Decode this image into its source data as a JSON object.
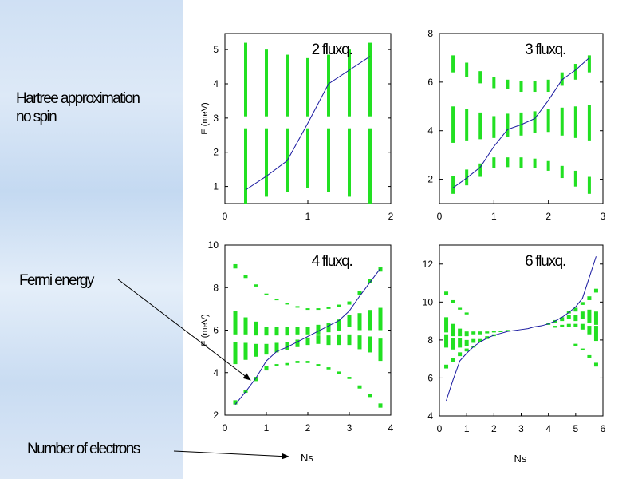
{
  "notes": {
    "hartree_line1": "Hartree approximation",
    "hartree_line2": "no spin",
    "fermi": "Fermi energy",
    "electrons": "Number of electrons"
  },
  "colors": {
    "bars": "#22e022",
    "line": "#1a1aa0",
    "background_gradient": "#cfe0f4"
  },
  "chart_data": [
    {
      "type": "line",
      "title": "2 fluxq.",
      "ylabel": "E (meV)",
      "xlabel": "",
      "xlim": [
        0,
        2
      ],
      "ylim": [
        0.5,
        5.47
      ],
      "xticks": [
        "0",
        "1",
        "2"
      ],
      "xtick_values": [
        0,
        1,
        2
      ],
      "yticks": [
        "1",
        "2",
        "3",
        "4",
        "5"
      ],
      "ytick_values": [
        1,
        2,
        3,
        4,
        5
      ],
      "line": {
        "x": [
          0.25,
          0.5,
          0.75,
          1,
          1.25,
          1.5,
          1.75
        ],
        "y": [
          0.9,
          1.3,
          1.75,
          2.85,
          4.0,
          4.4,
          4.8
        ]
      },
      "bars": [
        [
          0.25,
          0.5,
          2.7
        ],
        [
          0.25,
          3.05,
          5.2
        ],
        [
          0.5,
          0.7,
          2.7
        ],
        [
          0.5,
          3.05,
          5.0
        ],
        [
          0.75,
          0.85,
          2.7
        ],
        [
          0.75,
          3.05,
          4.85
        ],
        [
          1,
          0.95,
          2.7
        ],
        [
          1,
          3.05,
          4.75
        ],
        [
          1.25,
          0.85,
          2.7
        ],
        [
          1.25,
          3.05,
          4.85
        ],
        [
          1.5,
          0.7,
          2.7
        ],
        [
          1.5,
          3.05,
          5.0
        ],
        [
          1.75,
          0.5,
          2.7
        ],
        [
          1.75,
          3.05,
          5.2
        ]
      ],
      "bar_width": 4
    },
    {
      "type": "line",
      "title": "3 fluxq.",
      "ylabel": "",
      "xlabel": "",
      "xlim": [
        0,
        3
      ],
      "ylim": [
        1,
        8
      ],
      "xticks": [
        "0",
        "1",
        "2",
        "3"
      ],
      "xtick_values": [
        0,
        1,
        2,
        3
      ],
      "yticks": [
        "2",
        "4",
        "6",
        "8"
      ],
      "ytick_values": [
        2,
        4,
        6,
        8
      ],
      "line": {
        "x": [
          0.25,
          0.5,
          0.75,
          1,
          1.25,
          1.5,
          1.75,
          2,
          2.25,
          2.5,
          2.75
        ],
        "y": [
          1.65,
          2.05,
          2.5,
          3.35,
          4.05,
          4.25,
          4.5,
          5.25,
          6.1,
          6.5,
          7.0
        ]
      },
      "bars": [
        [
          0.25,
          6.4,
          7.1
        ],
        [
          0.5,
          6.2,
          6.8
        ],
        [
          0.75,
          5.95,
          6.45
        ],
        [
          1,
          5.75,
          6.2
        ],
        [
          1.25,
          5.7,
          6.1
        ],
        [
          1.5,
          5.6,
          6.05
        ],
        [
          1.75,
          5.6,
          6.05
        ],
        [
          2,
          5.6,
          6.1
        ],
        [
          2.25,
          5.85,
          6.4
        ],
        [
          2.5,
          6.1,
          6.75
        ],
        [
          2.75,
          6.4,
          7.1
        ],
        [
          0.25,
          3.5,
          5.0
        ],
        [
          0.5,
          3.6,
          4.9
        ],
        [
          0.75,
          3.65,
          4.75
        ],
        [
          1,
          3.7,
          4.6
        ],
        [
          1.25,
          3.75,
          4.7
        ],
        [
          1.5,
          3.8,
          4.75
        ],
        [
          1.75,
          3.9,
          4.8
        ],
        [
          2,
          3.95,
          4.9
        ],
        [
          2.25,
          3.8,
          4.95
        ],
        [
          2.5,
          3.7,
          5.0
        ],
        [
          2.75,
          3.6,
          5.05
        ],
        [
          0.25,
          1.4,
          2.15
        ],
        [
          0.5,
          1.75,
          2.4
        ],
        [
          0.75,
          2.1,
          2.65
        ],
        [
          1,
          2.45,
          2.9
        ],
        [
          1.25,
          2.5,
          2.9
        ],
        [
          1.5,
          2.45,
          2.9
        ],
        [
          1.75,
          2.45,
          2.85
        ],
        [
          2,
          2.35,
          2.75
        ],
        [
          2.25,
          2.05,
          2.55
        ],
        [
          2.5,
          1.7,
          2.35
        ],
        [
          2.75,
          1.4,
          2.1
        ]
      ],
      "bar_width": 4
    },
    {
      "type": "line",
      "title": "4 fluxq.",
      "ylabel": "E (meV)",
      "xlabel": "Ns",
      "xlim": [
        0,
        4
      ],
      "ylim": [
        2,
        10
      ],
      "xticks": [
        "0",
        "1",
        "2",
        "3",
        "4"
      ],
      "xtick_values": [
        0,
        1,
        2,
        3,
        4
      ],
      "yticks": [
        "2",
        "4",
        "6",
        "8",
        "10"
      ],
      "ytick_values": [
        2,
        4,
        6,
        8,
        10
      ],
      "line": {
        "x": [
          0.25,
          0.5,
          0.75,
          1,
          1.25,
          1.5,
          1.75,
          2,
          2.25,
          2.5,
          2.75,
          3,
          3.25,
          3.5,
          3.75
        ],
        "y": [
          2.5,
          3.1,
          3.75,
          4.55,
          5.0,
          5.2,
          5.45,
          5.7,
          5.95,
          6.2,
          6.45,
          6.9,
          7.6,
          8.25,
          8.9
        ]
      },
      "bars": [
        [
          0.25,
          8.9,
          9.1
        ],
        [
          0.5,
          8.45,
          8.6
        ],
        [
          0.75,
          8.05,
          8.15
        ],
        [
          1,
          7.65,
          7.72
        ],
        [
          1.25,
          7.42,
          7.48
        ],
        [
          1.5,
          7.22,
          7.28
        ],
        [
          1.75,
          7.07,
          7.13
        ],
        [
          2,
          6.97,
          7.03
        ],
        [
          2.25,
          6.97,
          7.03
        ],
        [
          2.5,
          7.0,
          7.1
        ],
        [
          2.75,
          7.1,
          7.2
        ],
        [
          3,
          7.2,
          7.35
        ],
        [
          3.25,
          7.65,
          7.85
        ],
        [
          3.5,
          8.2,
          8.4
        ],
        [
          3.75,
          8.75,
          8.95
        ],
        [
          0.25,
          5.8,
          6.9
        ],
        [
          0.5,
          5.8,
          6.6
        ],
        [
          0.75,
          5.75,
          6.4
        ],
        [
          1,
          5.75,
          6.15
        ],
        [
          1.25,
          5.75,
          6.15
        ],
        [
          1.5,
          5.75,
          6.15
        ],
        [
          1.75,
          5.8,
          6.15
        ],
        [
          2,
          5.8,
          6.15
        ],
        [
          2.25,
          5.8,
          6.25
        ],
        [
          2.5,
          5.9,
          6.35
        ],
        [
          2.75,
          5.95,
          6.5
        ],
        [
          3,
          6.15,
          6.7
        ],
        [
          3.25,
          6.0,
          6.8
        ],
        [
          3.5,
          6.0,
          6.95
        ],
        [
          3.75,
          6.0,
          7.05
        ],
        [
          0.25,
          4.4,
          5.45
        ],
        [
          0.5,
          4.6,
          5.4
        ],
        [
          0.75,
          4.75,
          5.35
        ],
        [
          1,
          4.85,
          5.35
        ],
        [
          1.25,
          4.95,
          5.4
        ],
        [
          1.5,
          5.05,
          5.45
        ],
        [
          1.75,
          5.2,
          5.55
        ],
        [
          2,
          5.3,
          5.65
        ],
        [
          2.25,
          5.35,
          5.75
        ],
        [
          2.5,
          5.3,
          5.75
        ],
        [
          2.75,
          5.3,
          5.8
        ],
        [
          3,
          5.3,
          5.8
        ],
        [
          3.25,
          5.1,
          5.75
        ],
        [
          3.5,
          4.95,
          5.7
        ],
        [
          3.75,
          4.55,
          5.6
        ],
        [
          0.25,
          2.5,
          2.7
        ],
        [
          0.5,
          3.05,
          3.2
        ],
        [
          0.75,
          3.6,
          3.8
        ],
        [
          1,
          4.1,
          4.3
        ],
        [
          1.25,
          4.3,
          4.4
        ],
        [
          1.5,
          4.35,
          4.45
        ],
        [
          1.75,
          4.45,
          4.55
        ],
        [
          2,
          4.45,
          4.55
        ],
        [
          2.25,
          4.3,
          4.4
        ],
        [
          2.5,
          4.15,
          4.25
        ],
        [
          2.75,
          3.95,
          4.05
        ],
        [
          3,
          3.7,
          3.8
        ],
        [
          3.25,
          3.25,
          3.4
        ],
        [
          3.5,
          2.85,
          3.0
        ],
        [
          3.75,
          2.35,
          2.55
        ]
      ],
      "bar_width": 5
    },
    {
      "type": "line",
      "title": "6 fluxq.",
      "ylabel": "",
      "xlabel": "Ns",
      "xlim": [
        0,
        6
      ],
      "ylim": [
        4,
        13
      ],
      "xticks": [
        "0",
        "1",
        "2",
        "3",
        "4",
        "5",
        "6"
      ],
      "xtick_values": [
        0,
        1,
        2,
        3,
        4,
        5,
        6
      ],
      "yticks": [
        "4",
        "6",
        "8",
        "10",
        "12"
      ],
      "ytick_values": [
        4,
        6,
        8,
        10,
        12
      ],
      "line": {
        "x": [
          0.25,
          0.5,
          0.75,
          1,
          1.25,
          1.5,
          1.75,
          2,
          2.25,
          2.5,
          2.75,
          3,
          3.25,
          3.5,
          3.75,
          4,
          4.25,
          4.5,
          4.75,
          5,
          5.25,
          5.5,
          5.75
        ],
        "y": [
          4.8,
          5.9,
          6.9,
          7.3,
          7.65,
          7.9,
          8.1,
          8.25,
          8.35,
          8.45,
          8.5,
          8.55,
          8.6,
          8.7,
          8.75,
          8.85,
          9.0,
          9.2,
          9.45,
          9.75,
          10.2,
          11.3,
          12.4
        ]
      },
      "bars": [
        [
          0.25,
          6.5,
          6.7
        ],
        [
          0.25,
          7.6,
          8.3
        ],
        [
          0.25,
          8.4,
          9.2
        ],
        [
          0.25,
          10.35,
          10.55
        ],
        [
          0.5,
          6.85,
          7.05
        ],
        [
          0.5,
          7.5,
          8.1
        ],
        [
          0.5,
          8.2,
          8.85
        ],
        [
          0.5,
          9.95,
          10.1
        ],
        [
          0.75,
          7.15,
          7.35
        ],
        [
          0.75,
          7.6,
          8.1
        ],
        [
          0.75,
          8.2,
          8.6
        ],
        [
          0.75,
          9.6,
          9.7
        ],
        [
          1,
          7.4,
          7.55
        ],
        [
          1,
          7.7,
          8.0
        ],
        [
          1,
          8.2,
          8.45
        ],
        [
          1,
          9.35,
          9.45
        ],
        [
          1.25,
          7.6,
          7.7
        ],
        [
          1.25,
          7.85,
          8.05
        ],
        [
          1.25,
          8.3,
          8.45
        ],
        [
          1.5,
          7.9,
          8.05
        ],
        [
          1.5,
          8.3,
          8.45
        ],
        [
          1.75,
          8.05,
          8.2
        ],
        [
          1.75,
          8.35,
          8.45
        ],
        [
          2,
          8.2,
          8.3
        ],
        [
          2,
          8.4,
          8.5
        ],
        [
          2.25,
          8.42,
          8.5
        ],
        [
          2.5,
          8.47,
          8.53
        ],
        [
          4,
          8.8,
          8.9
        ],
        [
          4.25,
          8.65,
          8.75
        ],
        [
          4.25,
          8.9,
          9.05
        ],
        [
          4.5,
          8.7,
          8.8
        ],
        [
          4.5,
          9.0,
          9.2
        ],
        [
          4.75,
          8.7,
          8.85
        ],
        [
          4.75,
          9.1,
          9.3
        ],
        [
          4.75,
          9.4,
          9.55
        ],
        [
          5,
          7.7,
          7.8
        ],
        [
          5,
          8.7,
          8.85
        ],
        [
          5,
          9.0,
          9.3
        ],
        [
          5,
          9.5,
          9.7
        ],
        [
          5.25,
          7.45,
          7.55
        ],
        [
          5.25,
          8.55,
          8.85
        ],
        [
          5.25,
          9.1,
          9.5
        ],
        [
          5.25,
          9.85,
          10.0
        ],
        [
          5.5,
          7.05,
          7.2
        ],
        [
          5.5,
          8.3,
          8.75
        ],
        [
          5.5,
          8.9,
          9.6
        ],
        [
          5.5,
          10.1,
          10.3
        ],
        [
          5.75,
          6.6,
          6.8
        ],
        [
          5.75,
          7.95,
          8.75
        ],
        [
          5.75,
          8.8,
          9.5
        ],
        [
          5.75,
          10.5,
          10.7
        ]
      ],
      "bar_width": 5
    }
  ]
}
